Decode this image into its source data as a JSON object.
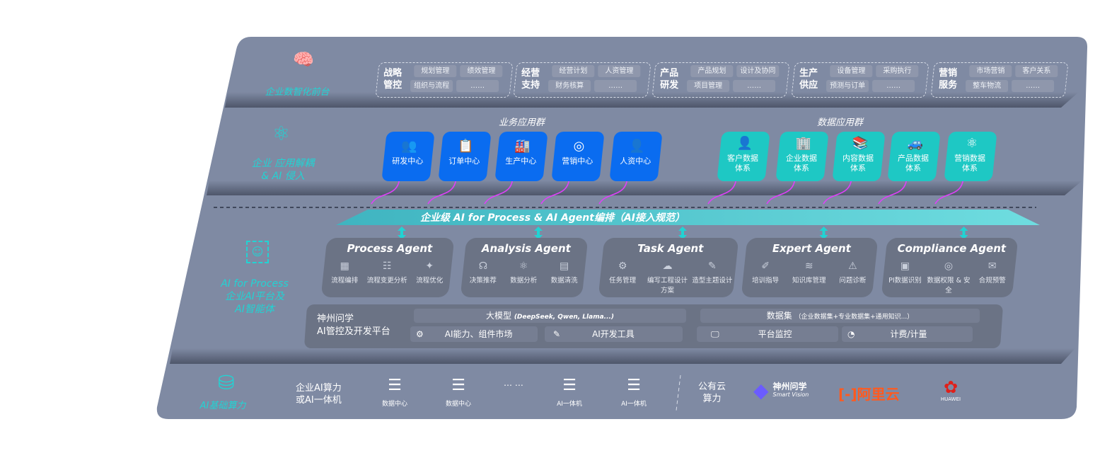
{
  "colors": {
    "panel": "#7f8aa3",
    "cyan": "#22d3d3",
    "app_blue": "#0a6cf0",
    "app_teal": "#1ec8c4",
    "connector": "#e040fb",
    "agent_bg": "#6b7385"
  },
  "layers": {
    "front": {
      "label": "企业数智化前台",
      "icon": "brain-icon",
      "groups": [
        {
          "title": "战略管控",
          "items": [
            "规划管理",
            "绩效管理",
            "组织与流程",
            "……"
          ]
        },
        {
          "title": "经营支持",
          "items": [
            "经营计划",
            "人资管理",
            "财务核算",
            "……"
          ]
        },
        {
          "title": "产品研发",
          "items": [
            "产品规划",
            "设计及协同",
            "项目管理",
            "……"
          ]
        },
        {
          "title": "生产供应",
          "items": [
            "设备管理",
            "采购执行",
            "预测与订单",
            "……"
          ]
        },
        {
          "title": "营销服务",
          "items": [
            "市场营销",
            "客户关系",
            "整车物流",
            "……"
          ]
        }
      ]
    },
    "apps": {
      "label_line1": "企业 应用解耦",
      "label_line2": "& AI 侵入",
      "icon": "molecule-icon",
      "business_title": "业务应用群",
      "business": [
        {
          "label": "研发中心",
          "icon": "users-icon"
        },
        {
          "label": "订单中心",
          "icon": "clipboard-icon"
        },
        {
          "label": "生产中心",
          "icon": "factory-icon"
        },
        {
          "label": "营销中心",
          "icon": "target-icon"
        },
        {
          "label": "人资中心",
          "icon": "person-icon"
        }
      ],
      "data_title": "数据应用群",
      "data": [
        {
          "label": "客户数据体系",
          "icon": "user-icon"
        },
        {
          "label": "企业数据体系",
          "icon": "building-icon"
        },
        {
          "label": "内容数据体系",
          "icon": "books-icon"
        },
        {
          "label": "产品数据体系",
          "icon": "car-icon"
        },
        {
          "label": "营销数据体系",
          "icon": "atom-icon"
        }
      ]
    },
    "ai": {
      "label_line1": "AI for Process",
      "label_line2": "企业AI平台及",
      "label_line3": "AI智能体",
      "icon": "face-scan-icon",
      "banner": "企业级 AI for Process & AI Agent编排（AI接入规范）",
      "agents": [
        {
          "title": "Process Agent",
          "items": [
            "流程编排",
            "流程变更分析",
            "流程优化"
          ]
        },
        {
          "title": "Analysis Agent",
          "items": [
            "决策推荐",
            "数据分析",
            "数据清洗"
          ]
        },
        {
          "title": "Task Agent",
          "items": [
            "任务管理",
            "编写工程设计方案",
            "造型主题设计"
          ]
        },
        {
          "title": "Expert Agent",
          "items": [
            "培训指导",
            "知识库管理",
            "问题诊断"
          ]
        },
        {
          "title": "Compliance Agent",
          "items": [
            "PI数据识别",
            "数据权限 & 安全",
            "合规预警"
          ]
        }
      ],
      "platform": {
        "name_line1": "神州问学",
        "name_line2": "AI管控及开发平台",
        "model": "大模型",
        "model_note": "(DeepSeek, Qwen, Llama...)",
        "dataset": "数据集",
        "dataset_note": "（企业数据集+专业数据集+通用知识...）",
        "tools": [
          "AI能力、组件市场",
          "AI开发工具",
          "平台监控",
          "计费/计量"
        ]
      }
    },
    "compute": {
      "label": "AI基础算力",
      "icon": "database-icon",
      "onprem_line1": "企业AI算力",
      "onprem_line2": "或AI一体机",
      "servers": [
        "数据中心",
        "数据中心",
        "AI一体机",
        "AI一体机"
      ],
      "ellipsis": "… …",
      "cloud_line1": "公有云",
      "cloud_line2": "算力",
      "vendors": [
        {
          "name": "神州问学",
          "sub": "Smart Vision"
        },
        {
          "name": "阿里云"
        },
        {
          "name": "HUAWEI"
        }
      ]
    }
  }
}
